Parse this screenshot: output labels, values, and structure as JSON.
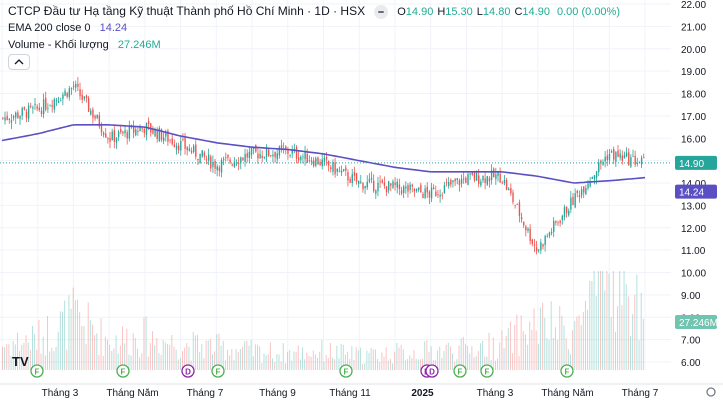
{
  "legend": {
    "title": "CTCP Đầu tư Hạ tầng Kỹ thuật Thành phố Hồ Chí Minh · 1D · HSX",
    "ohlc": [
      {
        "key": "O",
        "value": "14.90"
      },
      {
        "key": "H",
        "value": "15.30"
      },
      {
        "key": "L",
        "value": "14.80"
      },
      {
        "key": "C",
        "value": "14.90"
      }
    ],
    "change": "0.00 (0.00%)",
    "ema_label": "EMA 200 close 0",
    "ema_value": "14.24",
    "volume_label": "Volume - Khối lượng",
    "volume_value": "27.246M"
  },
  "colors": {
    "up": "#26a69a",
    "down": "#ef5350",
    "ema": "#5b4fc4",
    "price_label_bg": "#26a69a",
    "ema_label_bg": "#5b4fc4",
    "volume_label_bg": "#70c4b0",
    "grid": "#f0f3fa",
    "axis_text": "#131722",
    "dividend_marker": "#8e24aa",
    "financial_marker": "#4caf50"
  },
  "price_axis": {
    "ticks": [
      "22.00",
      "21.00",
      "20.00",
      "19.00",
      "18.00",
      "17.00",
      "16.00",
      "15.00",
      "14.00",
      "13.00",
      "12.00",
      "11.00",
      "10.00",
      "9.00",
      "8.00",
      "7.00",
      "6.00"
    ],
    "last_price_label": "14.90",
    "ema_label": "14.24",
    "volume_label": "27.246M"
  },
  "time_axis": {
    "labels": [
      "Tháng 3",
      "Tháng Năm",
      "Tháng 7",
      "Tháng 9",
      "Tháng 11",
      "2025",
      "Tháng 3",
      "Tháng Năm",
      "Tháng 7"
    ]
  },
  "events": [
    {
      "type": "F",
      "label": "F"
    },
    {
      "type": "F",
      "label": "F"
    },
    {
      "type": "D",
      "label": "D"
    },
    {
      "type": "F",
      "label": "F"
    },
    {
      "type": "F",
      "label": "F"
    },
    {
      "type": "D",
      "label": "D"
    },
    {
      "type": "D",
      "label": "D"
    },
    {
      "type": "F",
      "label": "F"
    },
    {
      "type": "F",
      "label": "F"
    },
    {
      "type": "F",
      "label": "F"
    }
  ],
  "logo_text": "TV",
  "chart_data": {
    "type": "candlestick",
    "title": "CTCP Đầu tư Hạ tầng Kỹ thuật Thành phố Hồ Chí Minh · 1D · HSX",
    "xlabel": "",
    "ylabel": "",
    "ylim": [
      6,
      22
    ],
    "x": [
      "2024-01",
      "2024-02",
      "2024-03",
      "2024-04",
      "2024-05",
      "2024-06",
      "2024-07",
      "2024-08",
      "2024-09",
      "2024-10",
      "2024-11",
      "2024-12",
      "2025-01",
      "2025-02",
      "2025-03",
      "2025-04",
      "2025-05",
      "2025-06",
      "2025-07"
    ],
    "series": [
      {
        "name": "Close",
        "values": [
          16.9,
          17.3,
          18.3,
          16.0,
          16.5,
          15.7,
          14.8,
          15.3,
          15.4,
          14.9,
          14.0,
          13.8,
          13.5,
          14.2,
          14.3,
          11.0,
          13.2,
          15.3,
          14.9
        ]
      },
      {
        "name": "EMA 200 close 0",
        "values": [
          15.9,
          16.2,
          16.6,
          16.6,
          16.5,
          16.1,
          15.8,
          15.6,
          15.5,
          15.3,
          15.0,
          14.7,
          14.5,
          14.5,
          14.5,
          14.3,
          14.0,
          14.1,
          14.24
        ]
      },
      {
        "name": "Volume - Khối lượng",
        "values": [
          1.2,
          1.5,
          2.5,
          1.4,
          1.6,
          1.2,
          1.1,
          0.9,
          0.8,
          0.9,
          0.7,
          0.8,
          0.9,
          1.0,
          1.2,
          2.2,
          1.8,
          4.5,
          2.8
        ]
      }
    ],
    "last_close": 14.9,
    "ema_last": 14.24,
    "grid": true,
    "legend": "top-left"
  }
}
